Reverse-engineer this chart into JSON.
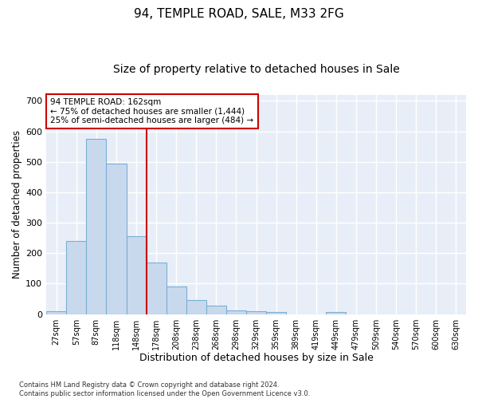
{
  "title1": "94, TEMPLE ROAD, SALE, M33 2FG",
  "title2": "Size of property relative to detached houses in Sale",
  "xlabel": "Distribution of detached houses by size in Sale",
  "ylabel": "Number of detached properties",
  "categories": [
    "27sqm",
    "57sqm",
    "87sqm",
    "118sqm",
    "148sqm",
    "178sqm",
    "208sqm",
    "238sqm",
    "268sqm",
    "298sqm",
    "329sqm",
    "359sqm",
    "389sqm",
    "419sqm",
    "449sqm",
    "479sqm",
    "509sqm",
    "540sqm",
    "570sqm",
    "600sqm",
    "630sqm"
  ],
  "values": [
    10,
    240,
    575,
    495,
    255,
    170,
    90,
    47,
    27,
    13,
    10,
    8,
    0,
    0,
    8,
    0,
    0,
    0,
    0,
    0,
    0
  ],
  "bar_color": "#c9d9ed",
  "bar_edge_color": "#7aafd4",
  "vline_x": 4.5,
  "vline_color": "#cc0000",
  "annotation_text": "94 TEMPLE ROAD: 162sqm\n← 75% of detached houses are smaller (1,444)\n25% of semi-detached houses are larger (484) →",
  "annotation_box_color": "#ffffff",
  "annotation_box_edge": "#cc0000",
  "ylim": [
    0,
    720
  ],
  "yticks": [
    0,
    100,
    200,
    300,
    400,
    500,
    600,
    700
  ],
  "background_color": "#e8eef8",
  "grid_color": "#ffffff",
  "footnote": "Contains HM Land Registry data © Crown copyright and database right 2024.\nContains public sector information licensed under the Open Government Licence v3.0.",
  "title1_fontsize": 11,
  "title2_fontsize": 10,
  "xlabel_fontsize": 9,
  "ylabel_fontsize": 8.5
}
